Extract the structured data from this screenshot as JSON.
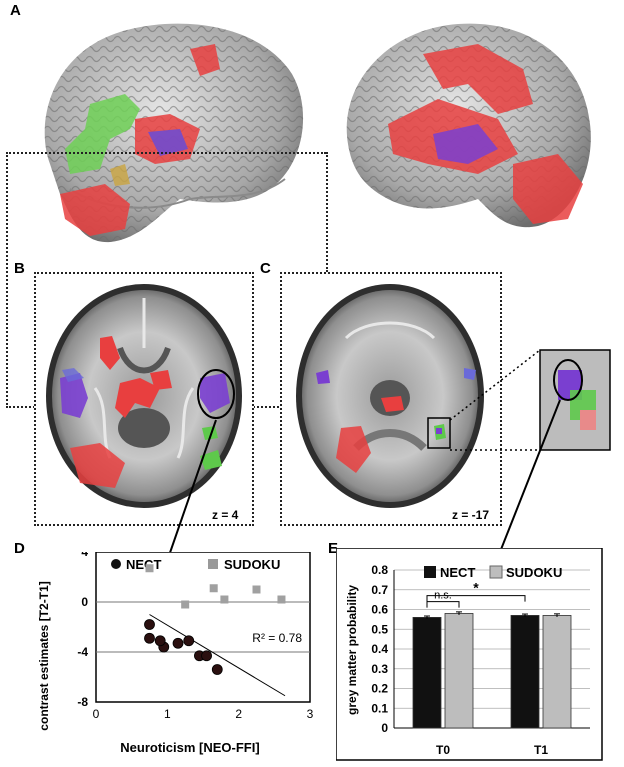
{
  "panels": {
    "a": "A",
    "b": "B",
    "c": "C",
    "d": "D",
    "e": "E"
  },
  "slices": {
    "b_z": "z = 4",
    "c_z": "z = -17"
  },
  "colors": {
    "red": "#e8403f",
    "green": "#5ec94b",
    "purple": "#8a3bb0",
    "blue": "#6a6ad8",
    "nect": "#111111",
    "sudoku": "#bdbdbd"
  },
  "chart_data": [
    {
      "type": "scatter",
      "panel": "D",
      "ylabel": "contrast estimates [T2-T1]",
      "xlabel": "Neuroticism [NEO-FFI]",
      "xlim": [
        0,
        3
      ],
      "ylim": [
        -8,
        4
      ],
      "xticks": [
        "0",
        "1",
        "2",
        "3"
      ],
      "yticks": [
        "4",
        "0",
        "-4",
        "-8"
      ],
      "legend_position": "top",
      "annotation": "R² = 0.78",
      "series": [
        {
          "name": "NECT",
          "color": "#111111",
          "marker": "circle",
          "x": [
            0.75,
            0.75,
            0.95,
            1.15,
            1.3,
            1.45,
            1.55,
            1.7,
            0.9
          ],
          "y": [
            -1.8,
            -2.9,
            -3.6,
            -3.3,
            -3.1,
            -4.3,
            -4.3,
            -5.4,
            -3.1
          ]
        },
        {
          "name": "SUDOKU",
          "color": "#999999",
          "marker": "square",
          "x": [
            0.75,
            1.25,
            1.65,
            1.8,
            2.25,
            2.6
          ],
          "y": [
            2.7,
            -0.2,
            1.1,
            0.2,
            1.0,
            0.2
          ]
        }
      ],
      "fit_line": {
        "x": [
          0.75,
          2.65
        ],
        "y": [
          -1.0,
          -7.5
        ]
      }
    },
    {
      "type": "bar",
      "panel": "E",
      "ylabel": "grey matter probability",
      "categories": [
        "T0",
        "T1"
      ],
      "ylim": [
        0,
        0.8
      ],
      "yticks": [
        "0",
        "0.1",
        "0.2",
        "0.3",
        "0.4",
        "0.5",
        "0.6",
        "0.7",
        "0.8"
      ],
      "legend_position": "top",
      "grid": true,
      "series": [
        {
          "name": "NECT",
          "color": "#111111",
          "values": [
            0.56,
            0.57
          ],
          "errors": [
            0.007,
            0.007
          ]
        },
        {
          "name": "SUDOKU",
          "color": "#bdbdbd",
          "values": [
            0.58,
            0.57
          ],
          "errors": [
            0.008,
            0.008
          ]
        }
      ],
      "annotations": [
        "n.s.",
        "*"
      ]
    }
  ]
}
